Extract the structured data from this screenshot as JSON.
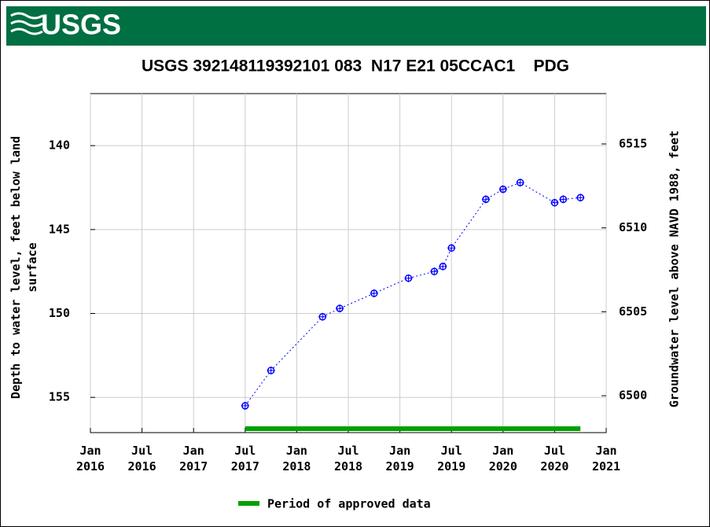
{
  "header": {
    "logo": "USGS"
  },
  "chart_data": {
    "type": "line",
    "title": "USGS 392148119392101 083  N17 E21 05CCAC1    PDG",
    "y_label": "Depth to water level, feet below land surface",
    "y2_label": "Groundwater level above NAVD 1988, feet",
    "x": [
      "2017-07",
      "2017-10",
      "2018-04",
      "2018-06",
      "2018-10",
      "2019-02",
      "2019-05",
      "2019-06",
      "2019-07",
      "2019-11",
      "2020-01",
      "2020-03",
      "2020-07",
      "2020-08",
      "2020-10"
    ],
    "series": [
      {
        "name": "Depth to water level",
        "color": "#0000ff",
        "values": [
          155.5,
          153.4,
          150.2,
          149.7,
          148.8,
          147.9,
          147.5,
          147.2,
          146.1,
          143.2,
          142.6,
          142.2,
          143.4,
          143.2,
          143.1
        ]
      }
    ],
    "xlim": [
      "2016-01",
      "2021-01"
    ],
    "xticks": [
      {
        "value": "2016-01",
        "label": "Jan 2016"
      },
      {
        "value": "2016-07",
        "label": "Jul 2016"
      },
      {
        "value": "2017-01",
        "label": "Jan 2017"
      },
      {
        "value": "2017-07",
        "label": "Jul 2017"
      },
      {
        "value": "2018-01",
        "label": "Jan 2018"
      },
      {
        "value": "2018-07",
        "label": "Jul 2018"
      },
      {
        "value": "2019-01",
        "label": "Jan 2019"
      },
      {
        "value": "2019-07",
        "label": "Jul 2019"
      },
      {
        "value": "2020-01",
        "label": "Jan 2020"
      },
      {
        "value": "2020-07",
        "label": "Jul 2020"
      },
      {
        "value": "2021-01",
        "label": "Jan 2021"
      }
    ],
    "ylim": [
      136.9,
      157.1
    ],
    "y_inverted": true,
    "yticks": [
      140,
      145,
      150,
      155
    ],
    "y2lim": [
      6497.8,
      6518.0
    ],
    "y2ticks": [
      6500,
      6505,
      6510,
      6515
    ],
    "grid": true,
    "approved_period": {
      "name": "Period of approved data",
      "color": "#00a000",
      "start": "2017-07",
      "end": "2020-10"
    }
  }
}
